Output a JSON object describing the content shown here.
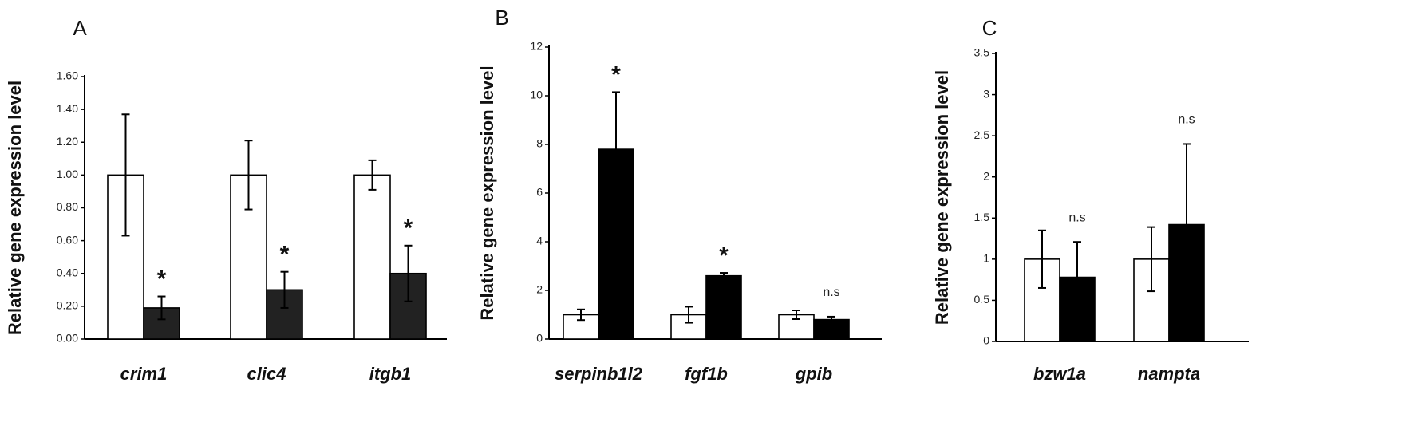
{
  "colors": {
    "control_fill": "#ffffff",
    "treated_fill_A": "#222222",
    "treated_fill_BC": "#000000",
    "axis": "#000000"
  },
  "chart_data": [
    {
      "type": "bar",
      "panel": "A",
      "ylabel": "Relative gene expression level",
      "ylim": [
        0,
        1.6
      ],
      "yticks": [
        "0.00",
        "0.20",
        "0.40",
        "0.60",
        "0.80",
        "1.00",
        "1.20",
        "1.40",
        "1.60"
      ],
      "categories": [
        "crim1",
        "clic4",
        "itgb1"
      ],
      "series": [
        {
          "values": [
            1.0,
            1.0,
            1.0
          ],
          "errors": [
            0.37,
            0.21,
            0.09
          ],
          "color": "#ffffff"
        },
        {
          "values": [
            0.19,
            0.3,
            0.4
          ],
          "errors": [
            0.07,
            0.11,
            0.17
          ],
          "color": "#222222"
        }
      ],
      "significance": [
        "*",
        "*",
        "*"
      ],
      "grid": false,
      "legend": "none"
    },
    {
      "type": "bar",
      "panel": "B",
      "ylabel": "Relative gene expression level",
      "ylim": [
        0,
        12
      ],
      "yticks": [
        "0",
        "2",
        "4",
        "6",
        "8",
        "10",
        "12"
      ],
      "categories": [
        "serpinb1l2",
        "fgf1b",
        "gpib"
      ],
      "series": [
        {
          "values": [
            1.0,
            1.0,
            1.0
          ],
          "errors": [
            0.22,
            0.33,
            0.18
          ],
          "color": "#ffffff"
        },
        {
          "values": [
            7.8,
            2.6,
            0.8
          ],
          "errors": [
            2.35,
            0.12,
            0.12
          ],
          "color": "#000000"
        }
      ],
      "significance": [
        "*",
        "*",
        "n.s"
      ],
      "grid": false,
      "legend": "none"
    },
    {
      "type": "bar",
      "panel": "C",
      "ylabel": "Relative gene expression level",
      "ylim": [
        0,
        3.5
      ],
      "yticks": [
        "0",
        "0.5",
        "1",
        "1.5",
        "2",
        "2.5",
        "3",
        "3.5"
      ],
      "categories": [
        "bzw1a",
        "nampta"
      ],
      "series": [
        {
          "values": [
            1.0,
            1.0
          ],
          "errors": [
            0.35,
            0.39
          ],
          "color": "#ffffff"
        },
        {
          "values": [
            0.78,
            1.42
          ],
          "errors": [
            0.43,
            0.98
          ],
          "color": "#000000"
        }
      ],
      "significance": [
        "n.s",
        "n.s"
      ],
      "grid": false,
      "legend": "none"
    }
  ]
}
